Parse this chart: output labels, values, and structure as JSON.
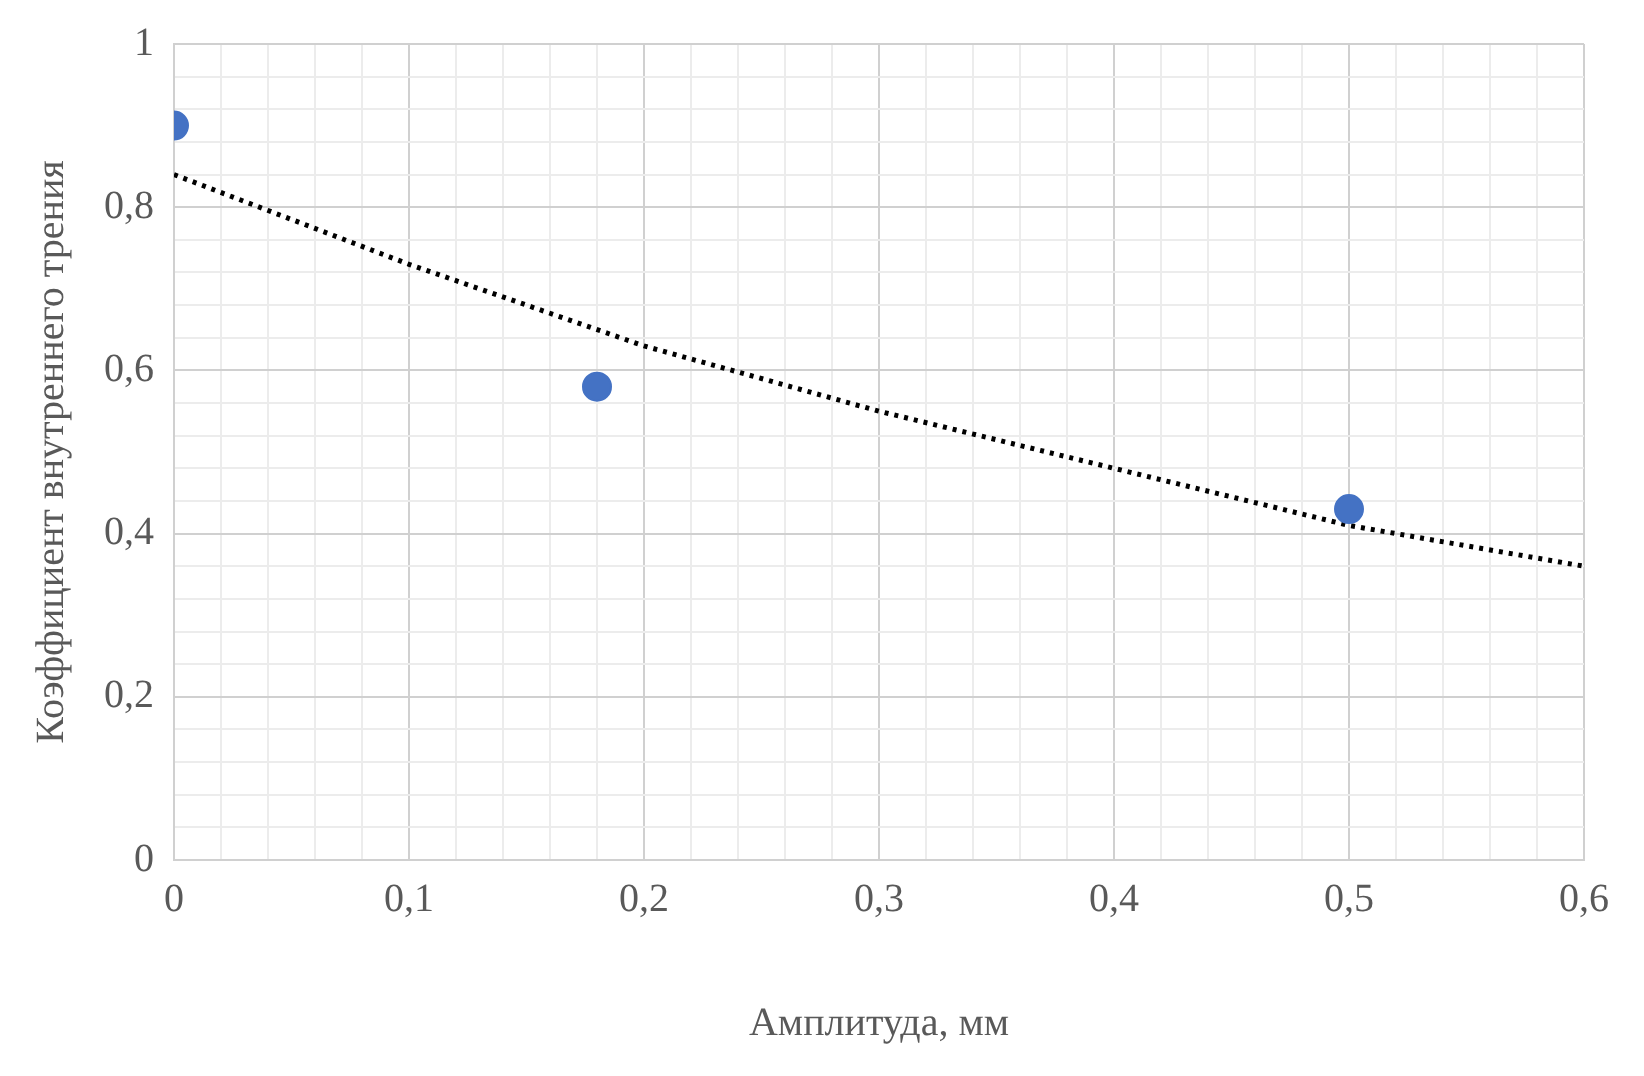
{
  "chart_data": {
    "type": "scatter",
    "xlabel": "Амплитуда, мм",
    "ylabel": "Коэффициент внутреннего трения",
    "xlim": [
      0,
      0.6
    ],
    "ylim": [
      0,
      1
    ],
    "xticks": [
      0,
      {
        "value": 0.02,
        "label": null
      },
      {
        "value": 0.04,
        "label": null
      },
      {
        "value": 0.06,
        "label": null
      },
      {
        "value": 0.08,
        "label": null
      },
      {
        "value": 0.1,
        "label": "0,1"
      },
      {
        "value": 0.12,
        "label": null
      },
      {
        "value": 0.14,
        "label": null
      },
      {
        "value": 0.16,
        "label": null
      },
      {
        "value": 0.18,
        "label": null
      },
      {
        "value": 0.2,
        "label": "0,2"
      },
      {
        "value": 0.22,
        "label": null
      },
      {
        "value": 0.24,
        "label": null
      },
      {
        "value": 0.26,
        "label": null
      },
      {
        "value": 0.28,
        "label": null
      },
      {
        "value": 0.3,
        "label": "0,3"
      },
      {
        "value": 0.32,
        "label": null
      },
      {
        "value": 0.34,
        "label": null
      },
      {
        "value": 0.36,
        "label": null
      },
      {
        "value": 0.38,
        "label": null
      },
      {
        "value": 0.4,
        "label": "0,4"
      },
      {
        "value": 0.42,
        "label": null
      },
      {
        "value": 0.44,
        "label": null
      },
      {
        "value": 0.46,
        "label": null
      },
      {
        "value": 0.48,
        "label": null
      },
      {
        "value": 0.5,
        "label": "0,5"
      },
      {
        "value": 0.52,
        "label": null
      },
      {
        "value": 0.54,
        "label": null
      },
      {
        "value": 0.56,
        "label": null
      },
      {
        "value": 0.58,
        "label": null
      },
      {
        "value": 0.6,
        "label": "0,6"
      }
    ],
    "yticks": [
      0,
      {
        "value": 0.04,
        "label": null
      },
      {
        "value": 0.08,
        "label": null
      },
      {
        "value": 0.12,
        "label": null
      },
      {
        "value": 0.16,
        "label": null
      },
      {
        "value": 0.2,
        "label": "0,2"
      },
      {
        "value": 0.24,
        "label": null
      },
      {
        "value": 0.28,
        "label": null
      },
      {
        "value": 0.32,
        "label": null
      },
      {
        "value": 0.36,
        "label": null
      },
      {
        "value": 0.4,
        "label": "0,4"
      },
      {
        "value": 0.44,
        "label": null
      },
      {
        "value": 0.48,
        "label": null
      },
      {
        "value": 0.52,
        "label": null
      },
      {
        "value": 0.56,
        "label": null
      },
      {
        "value": 0.6,
        "label": "0,6"
      },
      {
        "value": 0.64,
        "label": null
      },
      {
        "value": 0.68,
        "label": null
      },
      {
        "value": 0.72,
        "label": null
      },
      {
        "value": 0.76,
        "label": null
      },
      {
        "value": 0.8,
        "label": "0,8"
      },
      {
        "value": 0.84,
        "label": null
      },
      {
        "value": 0.88,
        "label": null
      },
      {
        "value": 0.92,
        "label": null
      },
      {
        "value": 0.96,
        "label": null
      },
      1
    ],
    "grid": true,
    "legend": false,
    "series": [
      {
        "color": "#4472c4",
        "x": [
          0,
          0.18,
          0.5
        ],
        "values": [
          0.9,
          0.58,
          0.43
        ],
        "marker": "circle"
      },
      {
        "type": "line",
        "color": "#000000",
        "line_style": "dotted",
        "marker": "none",
        "x": [
          0,
          0.1,
          0.2,
          0.3,
          0.4,
          0.5,
          0.6
        ],
        "values": [
          0.84,
          0.73,
          0.63,
          0.55,
          0.48,
          0.41,
          0.36
        ]
      }
    ]
  }
}
